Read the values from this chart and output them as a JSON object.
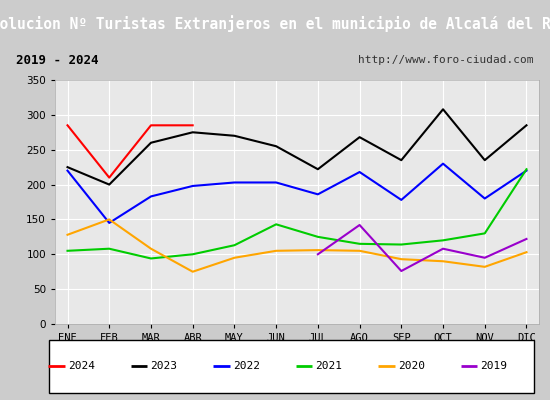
{
  "title": "Evolucion Nº Turistas Extranjeros en el municipio de Alcalá del Río",
  "subtitle_left": "2019 - 2024",
  "subtitle_right": "http://www.foro-ciudad.com",
  "months": [
    "ENE",
    "FEB",
    "MAR",
    "ABR",
    "MAY",
    "JUN",
    "JUL",
    "AGO",
    "SEP",
    "OCT",
    "NOV",
    "DIC"
  ],
  "series": {
    "2024": {
      "color": "#ff0000",
      "data": [
        285,
        210,
        285,
        285,
        null,
        null,
        null,
        null,
        null,
        null,
        null,
        null
      ]
    },
    "2023": {
      "color": "#000000",
      "data": [
        225,
        200,
        260,
        275,
        270,
        255,
        222,
        268,
        235,
        308,
        235,
        285
      ]
    },
    "2022": {
      "color": "#0000ff",
      "data": [
        220,
        145,
        183,
        198,
        203,
        203,
        186,
        218,
        178,
        230,
        180,
        220
      ]
    },
    "2021": {
      "color": "#00cc00",
      "data": [
        105,
        108,
        94,
        100,
        113,
        143,
        125,
        115,
        114,
        120,
        130,
        222
      ]
    },
    "2020": {
      "color": "#ffa500",
      "data": [
        128,
        150,
        108,
        75,
        95,
        105,
        106,
        105,
        93,
        90,
        82,
        103
      ]
    },
    "2019": {
      "color": "#9900cc",
      "data": [
        null,
        null,
        null,
        null,
        null,
        null,
        100,
        142,
        76,
        108,
        95,
        122
      ]
    }
  },
  "ylim": [
    0,
    350
  ],
  "yticks": [
    0,
    50,
    100,
    150,
    200,
    250,
    300,
    350
  ],
  "title_bg_color": "#3399cc",
  "header_bg_color": "#dddddd",
  "plot_bg_color": "#e8e8e8",
  "grid_color": "#ffffff",
  "legend_order": [
    "2024",
    "2023",
    "2022",
    "2021",
    "2020",
    "2019"
  ]
}
